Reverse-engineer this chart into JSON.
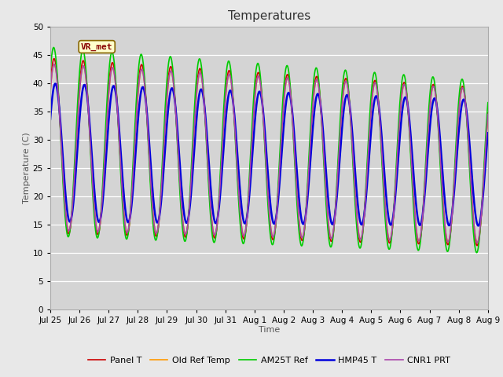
{
  "title": "Temperatures",
  "xlabel": "Time",
  "ylabel": "Temperature (C)",
  "ylim": [
    0,
    50
  ],
  "yticks": [
    0,
    5,
    10,
    15,
    20,
    25,
    30,
    35,
    40,
    45,
    50
  ],
  "date_labels": [
    "Jul 25",
    "Jul 26",
    "Jul 27",
    "Jul 28",
    "Jul 29",
    "Jul 30",
    "Jul 31",
    "Aug 1",
    "Aug 2",
    "Aug 3",
    "Aug 4",
    "Aug 5",
    "Aug 6",
    "Aug 7",
    "Aug 8",
    "Aug 9"
  ],
  "annotation": "VR_met",
  "series": [
    {
      "label": "Panel T",
      "color": "#cc0000",
      "lw": 1.2
    },
    {
      "label": "Old Ref Temp",
      "color": "#ff9900",
      "lw": 1.2
    },
    {
      "label": "AM25T Ref",
      "color": "#00cc00",
      "lw": 1.2
    },
    {
      "label": "HMP45 T",
      "color": "#0000dd",
      "lw": 1.8
    },
    {
      "label": "CNR1 PRT",
      "color": "#aa44aa",
      "lw": 1.2
    }
  ],
  "bg_color": "#e8e8e8",
  "plot_bg_color": "#d4d4d4",
  "title_fontsize": 11,
  "label_fontsize": 8,
  "tick_fontsize": 7.5,
  "annotation_fontsize": 8
}
